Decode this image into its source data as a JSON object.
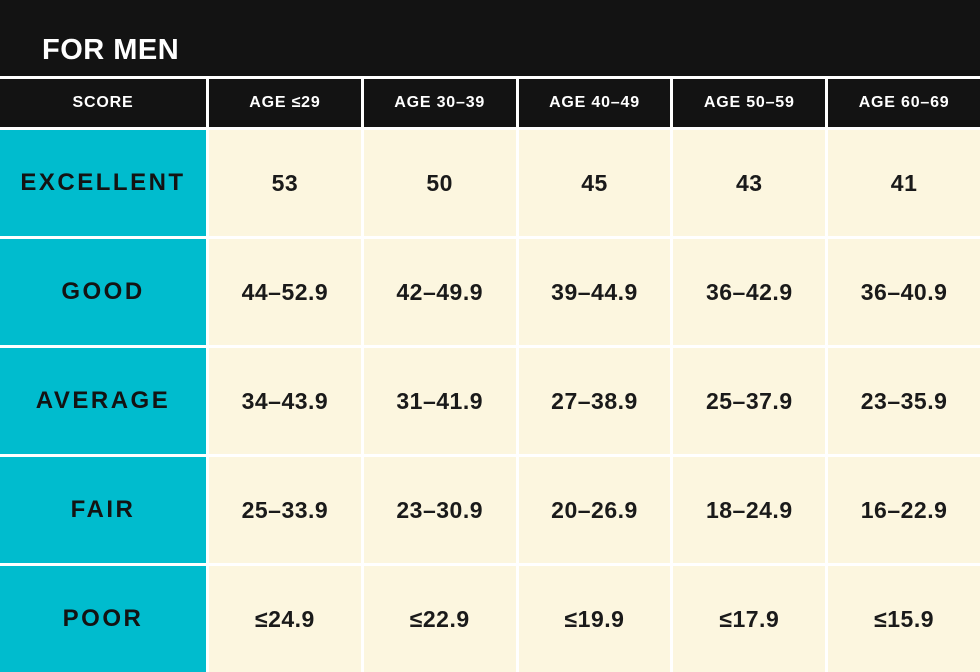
{
  "banner": {
    "title": "FOR MEN"
  },
  "chart_data": {
    "type": "table",
    "title": "FOR MEN",
    "columns": [
      "SCORE",
      "AGE ≤29",
      "AGE 30–39",
      "AGE 40–49",
      "AGE 50–59",
      "AGE 60–69"
    ],
    "rows": [
      {
        "label": "EXCELLENT",
        "values": [
          "53",
          "50",
          "45",
          "43",
          "41"
        ]
      },
      {
        "label": "GOOD",
        "values": [
          "44–52.9",
          "42–49.9",
          "39–44.9",
          "36–42.9",
          "36–40.9"
        ]
      },
      {
        "label": "AVERAGE",
        "values": [
          "34–43.9",
          "31–41.9",
          "27–38.9",
          "25–37.9",
          "23–35.9"
        ]
      },
      {
        "label": "FAIR",
        "values": [
          "25–33.9",
          "23–30.9",
          "20–26.9",
          "18–24.9",
          "16–22.9"
        ]
      },
      {
        "label": "POOR",
        "values": [
          "≤24.9",
          "≤22.9",
          "≤19.9",
          "≤17.9",
          "≤15.9"
        ]
      }
    ]
  },
  "colors": {
    "banner_black": "#131313",
    "accent_cyan": "#00BCCE",
    "cell_cream": "#FCF6DF",
    "divider_white": "#FFFFFF",
    "header_text": "#FFFFFF",
    "body_text": "#1A1A1A"
  }
}
